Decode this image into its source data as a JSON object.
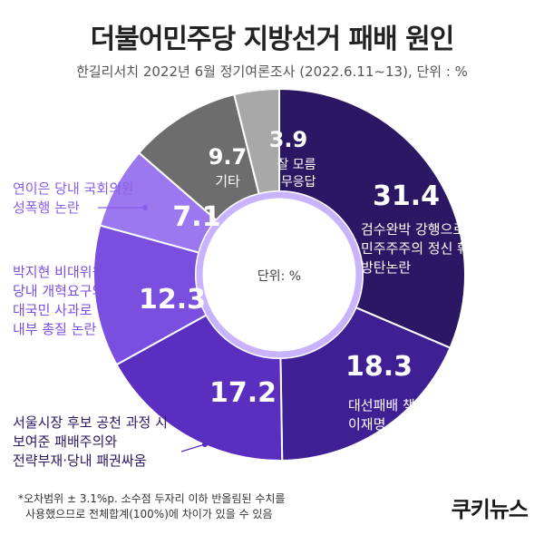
{
  "header": {
    "title": "더불어민주당 지방선거 패배 원인",
    "subtitle": "한길리서치 2022년 6월 정기여론조사 (2022.6.11~13), 단위 : %"
  },
  "chart_data": {
    "type": "pie",
    "center_label": "단위: %",
    "slices": [
      {
        "value": 31.4,
        "value_label": "31.4",
        "label_lines": [
          "검수완박 강행으로",
          "민주주주의 정신 훼손·",
          "방탄논란"
        ],
        "color": "#2b1763"
      },
      {
        "value": 18.3,
        "value_label": "18.3",
        "label_lines": [
          "대선패배 책임져야 할",
          "이재명, 송영길 선거출마"
        ],
        "color": "#3f1f94"
      },
      {
        "value": 17.2,
        "value_label": "17.2",
        "label_lines": [
          "서울시장 후보 공천 과정 시",
          "보여준 패배주의와",
          "전략부재·당내 패권싸움"
        ],
        "color": "#5a2fc0"
      },
      {
        "value": 12.3,
        "value_label": "12.3",
        "label_lines": [
          "박지현 비대위원장",
          "당내 개혁요구와",
          "대국민 사과로 인한",
          "내부 총질 논란"
        ],
        "color": "#7a4fe0"
      },
      {
        "value": 7.1,
        "value_label": "7.1",
        "label_lines": [
          "연이은 당내 국회의원",
          "성폭행 논란"
        ],
        "color": "#9c78f0"
      },
      {
        "value": 9.7,
        "value_label": "9.7",
        "label_lines": [
          "기타"
        ],
        "color": "#6d6d6d"
      },
      {
        "value": 3.9,
        "value_label": "3.9",
        "label_lines": [
          "잘 모름",
          "·무응답"
        ],
        "color": "#a8a8a8"
      }
    ]
  },
  "footnote": {
    "line1": "*오차범위 ± 3.1%p. 소수점 두자리 이하 반올림된 수치를",
    "line2": "사용했으므로 전체합계(100%)에 차이가 있을 수 있음"
  },
  "logo": {
    "text": "쿠키뉴스"
  }
}
